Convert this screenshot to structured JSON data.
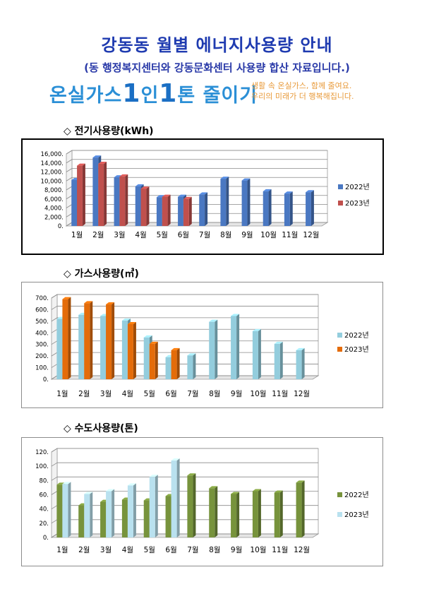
{
  "header": {
    "title": "강동동 월별 에너지사용량 안내",
    "subtitle": "(동 행정복지센터와 강동문화센터 사용량 합산 자료입니다.)"
  },
  "slogan": {
    "prefix": "온실가스",
    "one": "1",
    "person": "인",
    "one2": "1",
    "ton": "톤",
    "suffix": "줄이기",
    "side_line1": "생활 속 온실가스, 함께 줄여요.",
    "side_line2": "우리의 미래가 더 행복해집니다."
  },
  "colors": {
    "title": "#1f3bb0",
    "elec_2022": "#4a78c2",
    "elec_2023": "#c0504d",
    "gas_2022": "#93cddd",
    "gas_2023": "#e46c0a",
    "water_2022": "#77933c",
    "water_2023": "#b9e1ef"
  },
  "chart_data": [
    {
      "type": "bar",
      "title": "◇ 전기사용량(kWh)",
      "categories": [
        "1월",
        "2월",
        "3월",
        "4월",
        "5월",
        "6월",
        "7월",
        "8월",
        "9월",
        "10월",
        "11월",
        "12월"
      ],
      "ylim": [
        0,
        16000
      ],
      "yticks": [
        "0.",
        "2,000.",
        "4,000.",
        "6,000.",
        "8,000.",
        "10,000.",
        "12,000.",
        "14,000.",
        "16,000."
      ],
      "legend_position": "right",
      "series": [
        {
          "name": "2022년",
          "values": [
            10200,
            15200,
            10800,
            8800,
            6400,
            6500,
            7000,
            10500,
            10100,
            7700,
            7200,
            7500
          ]
        },
        {
          "name": "2023년",
          "values": [
            13400,
            13800,
            11000,
            8300,
            6500,
            6000,
            null,
            null,
            null,
            null,
            null,
            null
          ]
        }
      ]
    },
    {
      "type": "bar",
      "title": "◇ 가스사용량(㎥)",
      "categories": [
        "1월",
        "2월",
        "3월",
        "4월",
        "5월",
        "6월",
        "7월",
        "8월",
        "9월",
        "10월",
        "11월",
        "12월"
      ],
      "ylim": [
        0,
        700
      ],
      "yticks": [
        "0.",
        "100.",
        "200.",
        "300.",
        "400.",
        "500.",
        "600.",
        "700."
      ],
      "legend_position": "right",
      "series": [
        {
          "name": "2022년",
          "values": [
            520,
            555,
            545,
            505,
            360,
            190,
            205,
            495,
            545,
            415,
            305,
            250
          ]
        },
        {
          "name": "2023년",
          "values": [
            690,
            655,
            645,
            475,
            305,
            250,
            null,
            null,
            null,
            null,
            null,
            null
          ]
        }
      ]
    },
    {
      "type": "bar",
      "title": "◇ 수도사용량(톤)",
      "categories": [
        "1월",
        "2월",
        "3월",
        "4월",
        "5월",
        "6월",
        "7월",
        "8월",
        "9월",
        "10월",
        "11월",
        "12월"
      ],
      "ylim": [
        0,
        120
      ],
      "yticks": [
        "0.",
        "20.",
        "40.",
        "60.",
        "80.",
        "100.",
        "120."
      ],
      "legend_position": "right",
      "series": [
        {
          "name": "2022년",
          "values": [
            74,
            45,
            50,
            53,
            52,
            58,
            87,
            69,
            61,
            65,
            63,
            77
          ]
        },
        {
          "name": "2023년",
          "values": [
            75,
            61,
            65,
            73,
            85,
            108,
            null,
            null,
            null,
            null,
            null,
            null
          ]
        }
      ]
    }
  ]
}
